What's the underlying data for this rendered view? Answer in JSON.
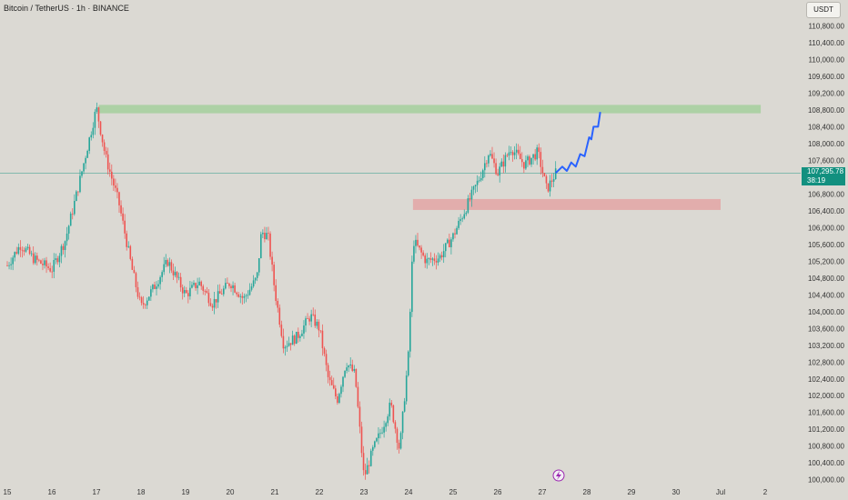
{
  "header": {
    "title": "Bitcoin / TetherUS · 1h · BINANCE",
    "currency_button": "USDT"
  },
  "price_tag": {
    "price": "107,295.78",
    "countdown": "38:19"
  },
  "colors": {
    "bull": "#26a69a",
    "bear": "#ef5350",
    "projection": "#2962ff",
    "resistance": "#a5cf9c",
    "support": "#e3a4a4",
    "last_price_line": "#12907f"
  },
  "chart_data": {
    "type": "candlestick",
    "title": "Bitcoin / TetherUS · 1h · BINANCE",
    "x_tick_labels": [
      "15",
      "16",
      "17",
      "18",
      "19",
      "20",
      "21",
      "22",
      "23",
      "24",
      "25",
      "26",
      "27",
      "28",
      "29",
      "30",
      "Jul",
      "2"
    ],
    "y_tick_labels": [
      "110,800.00",
      "110,400.00",
      "110,000.00",
      "109,600.00",
      "109,200.00",
      "108,800.00",
      "108,400.00",
      "108,000.00",
      "107,600.00",
      "106,800.00",
      "106,400.00",
      "106,000.00",
      "105,600.00",
      "105,200.00",
      "104,800.00",
      "104,400.00",
      "104,000.00",
      "103,600.00",
      "103,200.00",
      "102,800.00",
      "102,400.00",
      "102,000.00",
      "101,600.00",
      "101,200.00",
      "100,800.00",
      "100,400.00",
      "100,000.00"
    ],
    "ylim": [
      99950,
      111200
    ],
    "last_price": 107295.78,
    "path_points": [
      {
        "x": "15",
        "y": 105100
      },
      {
        "x": "15.3",
        "y": 105600
      },
      {
        "x": "15.6",
        "y": 105250
      },
      {
        "x": "16",
        "y": 105000
      },
      {
        "x": "16.3",
        "y": 105700
      },
      {
        "x": "16.6",
        "y": 107000
      },
      {
        "x": "17",
        "y": 108850
      },
      {
        "x": "17.2",
        "y": 107700
      },
      {
        "x": "17.5",
        "y": 106600
      },
      {
        "x": "17.8",
        "y": 105000
      },
      {
        "x": "18",
        "y": 104100
      },
      {
        "x": "18.3",
        "y": 104600
      },
      {
        "x": "18.6",
        "y": 105200
      },
      {
        "x": "19",
        "y": 104400
      },
      {
        "x": "19.3",
        "y": 104700
      },
      {
        "x": "19.6",
        "y": 104200
      },
      {
        "x": "20",
        "y": 104700
      },
      {
        "x": "20.3",
        "y": 104300
      },
      {
        "x": "20.6",
        "y": 104800
      },
      {
        "x": "20.7",
        "y": 105900
      },
      {
        "x": "20.85",
        "y": 105800
      },
      {
        "x": "21",
        "y": 104500
      },
      {
        "x": "21.2",
        "y": 103200
      },
      {
        "x": "21.5",
        "y": 103400
      },
      {
        "x": "21.8",
        "y": 103900
      },
      {
        "x": "22",
        "y": 103600
      },
      {
        "x": "22.2",
        "y": 102400
      },
      {
        "x": "22.4",
        "y": 101900
      },
      {
        "x": "22.6",
        "y": 102800
      },
      {
        "x": "22.8",
        "y": 102500
      },
      {
        "x": "23",
        "y": 100050
      },
      {
        "x": "23.2",
        "y": 100700
      },
      {
        "x": "23.4",
        "y": 101200
      },
      {
        "x": "23.6",
        "y": 101800
      },
      {
        "x": "23.8",
        "y": 100700
      },
      {
        "x": "24",
        "y": 103000
      },
      {
        "x": "24.1",
        "y": 105700
      },
      {
        "x": "24.4",
        "y": 105200
      },
      {
        "x": "24.7",
        "y": 105300
      },
      {
        "x": "25",
        "y": 105800
      },
      {
        "x": "25.3",
        "y": 106500
      },
      {
        "x": "25.6",
        "y": 107200
      },
      {
        "x": "25.8",
        "y": 107800
      },
      {
        "x": "26",
        "y": 107300
      },
      {
        "x": "26.3",
        "y": 107900
      },
      {
        "x": "26.6",
        "y": 107500
      },
      {
        "x": "26.9",
        "y": 107800
      },
      {
        "x": "27.1",
        "y": 106900
      },
      {
        "x": "27.3",
        "y": 107300
      }
    ],
    "projection": [
      {
        "x": "27.3",
        "y": 107300
      },
      {
        "x": "27.45",
        "y": 107450
      },
      {
        "x": "27.55",
        "y": 107350
      },
      {
        "x": "27.65",
        "y": 107550
      },
      {
        "x": "27.75",
        "y": 107450
      },
      {
        "x": "27.85",
        "y": 107750
      },
      {
        "x": "27.95",
        "y": 107700
      },
      {
        "x": "28.05",
        "y": 108150
      },
      {
        "x": "28.1",
        "y": 108100
      },
      {
        "x": "28.15",
        "y": 108400
      },
      {
        "x": "28.25",
        "y": 108400
      },
      {
        "x": "28.3",
        "y": 108750
      }
    ],
    "zones": [
      {
        "type": "resistance",
        "y_top": 108920,
        "y_bottom": 108720,
        "x_start": "17.05",
        "x_end": "31.9"
      },
      {
        "type": "support",
        "y_top": 106680,
        "y_bottom": 106420,
        "x_start": "24.1",
        "x_end": "31"
      }
    ],
    "grid": false,
    "legend": "none"
  }
}
